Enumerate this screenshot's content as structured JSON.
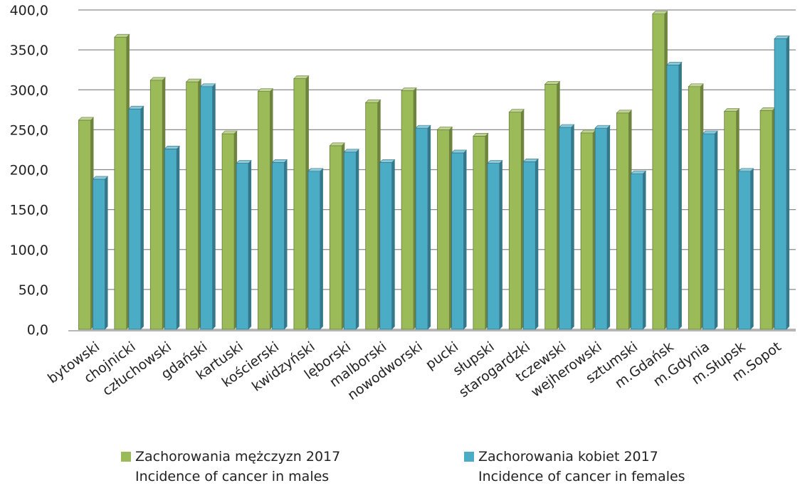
{
  "chart_data": {
    "type": "bar",
    "title": "",
    "xlabel": "",
    "ylabel": "",
    "ylim": [
      0,
      400
    ],
    "yticks": [
      "0,0",
      "50,0",
      "100,0",
      "150,0",
      "200,0",
      "250,0",
      "300,0",
      "350,0",
      "400,0"
    ],
    "grid": true,
    "legend_position": "bottom",
    "categories": [
      "bytowski",
      "chojnicki",
      "człuchowski",
      "gdański",
      "kartuski",
      "kościerski",
      "kwidzyński",
      "lęborski",
      "malborski",
      "nowodworski",
      "pucki",
      "słupski",
      "starogardzki",
      "tczewski",
      "wejherowski",
      "sztumski",
      "m.Gdańsk",
      "m.Gdynia",
      "m.Słupsk",
      "m.Sopot"
    ],
    "series": [
      {
        "name": "Zachorowania mężczyzn 2017",
        "name_en": "Incidence of cancer in males",
        "color": "#9BBB59",
        "values": [
          262,
          366,
          312,
          310,
          245,
          298,
          314,
          230,
          284,
          299,
          250,
          242,
          272,
          307,
          246,
          271,
          395,
          304,
          273,
          274
        ]
      },
      {
        "name": "Zachorowania kobiet 2017",
        "name_en": "Incidence of cancer in females",
        "color": "#4BACC6",
        "values": [
          188,
          276,
          226,
          304,
          208,
          209,
          198,
          222,
          209,
          252,
          221,
          208,
          210,
          253,
          252,
          195,
          331,
          245,
          198,
          364
        ]
      }
    ]
  }
}
